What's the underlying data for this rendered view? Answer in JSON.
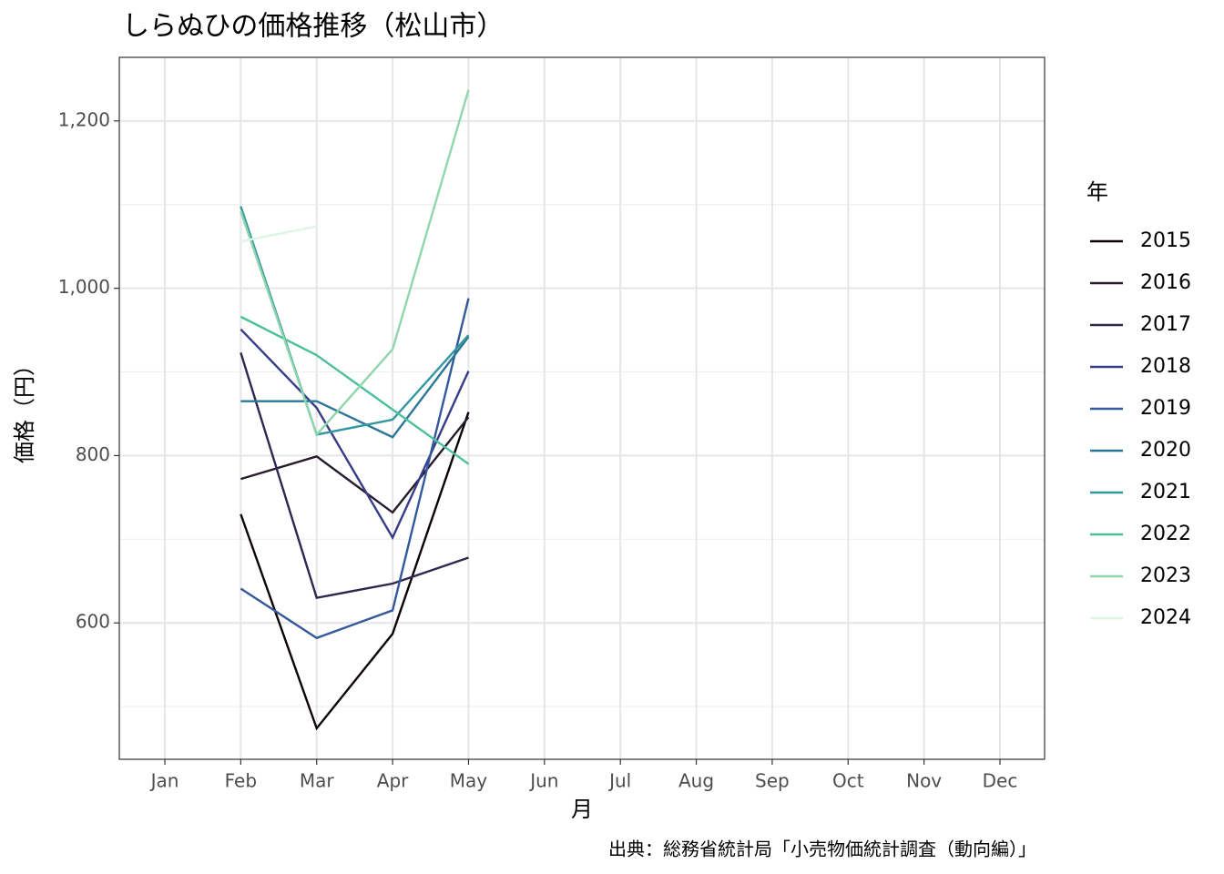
{
  "chart_data": {
    "type": "line",
    "title": "しらぬひの価格推移（松山市）",
    "x_label": "月",
    "y_label": "価格（円）",
    "caption": "出典：総務省統計局「小売物価統計調査（動向編）」",
    "legend_title": "年",
    "categories": [
      "Jan",
      "Feb",
      "Mar",
      "Apr",
      "May",
      "Jun",
      "Jul",
      "Aug",
      "Sep",
      "Oct",
      "Nov",
      "Dec"
    ],
    "ylim": [
      437,
      1276
    ],
    "yticks": [
      600,
      800,
      {
        "value": 1000,
        "label": "1,000"
      },
      {
        "value": 1200,
        "label": "1,200"
      }
    ],
    "grid": true,
    "series": [
      {
        "name": "2015",
        "color": "#0b0405",
        "values": [
          null,
          730,
          474,
          587,
          852,
          null,
          null,
          null,
          null,
          null,
          null,
          null
        ]
      },
      {
        "name": "2016",
        "color": "#261a2c",
        "values": [
          null,
          772,
          799,
          732,
          846,
          null,
          null,
          null,
          null,
          null,
          null,
          null
        ]
      },
      {
        "name": "2017",
        "color": "#312650",
        "values": [
          null,
          923,
          630,
          647,
          678,
          null,
          null,
          null,
          null,
          null,
          null,
          null
        ]
      },
      {
        "name": "2018",
        "color": "#383d87",
        "values": [
          null,
          951,
          857,
          702,
          901,
          null,
          null,
          null,
          null,
          null,
          null,
          null
        ]
      },
      {
        "name": "2019",
        "color": "#34589c",
        "values": [
          null,
          641,
          582,
          615,
          988,
          null,
          null,
          null,
          null,
          null,
          null,
          null
        ]
      },
      {
        "name": "2020",
        "color": "#2d7796",
        "values": [
          null,
          865,
          865,
          822,
          942,
          null,
          null,
          null,
          null,
          null,
          null,
          null
        ]
      },
      {
        "name": "2021",
        "color": "#33979f",
        "values": [
          null,
          1098,
          825,
          843,
          944,
          null,
          null,
          null,
          null,
          null,
          null,
          null
        ]
      },
      {
        "name": "2022",
        "color": "#4cbf9d",
        "values": [
          null,
          966,
          920,
          855,
          790,
          null,
          null,
          null,
          null,
          null,
          null,
          null
        ]
      },
      {
        "name": "2023",
        "color": "#8fd6ad",
        "values": [
          null,
          1092,
          825,
          927,
          1237,
          null,
          null,
          null,
          null,
          null,
          null,
          null
        ]
      },
      {
        "name": "2024",
        "color": "#def5e5",
        "values": [
          null,
          1056,
          1074,
          null,
          null,
          null,
          null,
          null,
          null,
          null,
          null,
          null
        ]
      }
    ]
  }
}
